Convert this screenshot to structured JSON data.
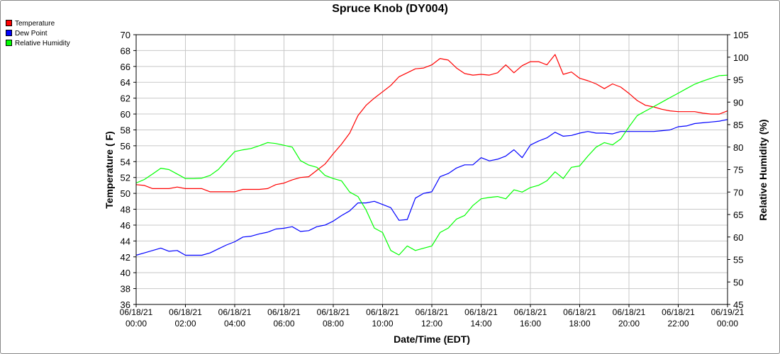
{
  "chart_data": {
    "type": "line",
    "title": "Spruce Knob (DY004)",
    "xlabel": "Date/Time (EDT)",
    "ylabel": "Temperature ( F)",
    "y2label": "Relative Humidity (%)",
    "xlim": [
      "06/18/21 00:00",
      "06/19/21 00:00"
    ],
    "ylim": [
      36,
      70
    ],
    "y2lim": [
      45,
      105
    ],
    "grid": true,
    "legend_position": "top-left",
    "x_ticks": [
      {
        "date": "06/18/21",
        "time": "00:00"
      },
      {
        "date": "06/18/21",
        "time": "02:00"
      },
      {
        "date": "06/18/21",
        "time": "04:00"
      },
      {
        "date": "06/18/21",
        "time": "06:00"
      },
      {
        "date": "06/18/21",
        "time": "08:00"
      },
      {
        "date": "06/18/21",
        "time": "10:00"
      },
      {
        "date": "06/18/21",
        "time": "12:00"
      },
      {
        "date": "06/18/21",
        "time": "14:00"
      },
      {
        "date": "06/18/21",
        "time": "16:00"
      },
      {
        "date": "06/18/21",
        "time": "18:00"
      },
      {
        "date": "06/18/21",
        "time": "20:00"
      },
      {
        "date": "06/18/21",
        "time": "22:00"
      },
      {
        "date": "06/19/21",
        "time": "00:00"
      }
    ],
    "y_ticks": [
      36,
      38,
      40,
      42,
      44,
      46,
      48,
      50,
      52,
      54,
      56,
      58,
      60,
      62,
      64,
      66,
      68,
      70
    ],
    "y2_ticks": [
      45,
      50,
      55,
      60,
      65,
      70,
      75,
      80,
      85,
      90,
      95,
      100,
      105
    ],
    "series": [
      {
        "name": "Temperature",
        "color": "#ff0000",
        "axis": "left",
        "x": [
          "06/18/21 00:00",
          "06/18/21 00:20",
          "06/18/21 00:40",
          "06/18/21 01:00",
          "06/18/21 01:20",
          "06/18/21 01:40",
          "06/18/21 02:00",
          "06/18/21 02:20",
          "06/18/21 02:40",
          "06/18/21 03:00",
          "06/18/21 03:20",
          "06/18/21 03:40",
          "06/18/21 04:00",
          "06/18/21 04:20",
          "06/18/21 04:40",
          "06/18/21 05:00",
          "06/18/21 05:20",
          "06/18/21 05:40",
          "06/18/21 06:00",
          "06/18/21 06:20",
          "06/18/21 06:40",
          "06/18/21 07:00",
          "06/18/21 07:20",
          "06/18/21 07:40",
          "06/18/21 08:00",
          "06/18/21 08:20",
          "06/18/21 08:40",
          "06/18/21 09:00",
          "06/18/21 09:20",
          "06/18/21 09:40",
          "06/18/21 10:00",
          "06/18/21 10:20",
          "06/18/21 10:40",
          "06/18/21 11:00",
          "06/18/21 11:20",
          "06/18/21 11:40",
          "06/18/21 12:00",
          "06/18/21 12:20",
          "06/18/21 12:40",
          "06/18/21 13:00",
          "06/18/21 13:20",
          "06/18/21 13:40",
          "06/18/21 14:00",
          "06/18/21 14:20",
          "06/18/21 14:40",
          "06/18/21 15:00",
          "06/18/21 15:20",
          "06/18/21 15:40",
          "06/18/21 16:00",
          "06/18/21 16:20",
          "06/18/21 16:40",
          "06/18/21 17:00",
          "06/18/21 17:20",
          "06/18/21 17:40",
          "06/18/21 18:00",
          "06/18/21 18:20",
          "06/18/21 18:40",
          "06/18/21 19:00",
          "06/18/21 19:20",
          "06/18/21 19:40",
          "06/18/21 20:00",
          "06/18/21 20:20",
          "06/18/21 20:40",
          "06/18/21 21:00",
          "06/18/21 21:20",
          "06/18/21 21:40",
          "06/18/21 22:00",
          "06/18/21 22:20",
          "06/18/21 22:40",
          "06/18/21 23:00",
          "06/18/21 23:20",
          "06/18/21 23:40",
          "06/19/21 00:00"
        ],
        "values": [
          51.1,
          51.0,
          50.6,
          50.6,
          50.6,
          50.8,
          50.6,
          50.6,
          50.6,
          50.2,
          50.2,
          50.2,
          50.2,
          50.5,
          50.5,
          50.5,
          50.6,
          51.1,
          51.3,
          51.7,
          52.0,
          52.1,
          52.9,
          53.7,
          55.0,
          56.2,
          57.6,
          59.8,
          61.1,
          62.0,
          62.8,
          63.6,
          64.7,
          65.2,
          65.7,
          65.8,
          66.2,
          67.0,
          66.8,
          65.8,
          65.1,
          64.9,
          65.0,
          64.9,
          65.2,
          66.2,
          65.2,
          66.1,
          66.6,
          66.6,
          66.2,
          67.5,
          65.0,
          65.3,
          64.5,
          64.2,
          63.8,
          63.2,
          63.8,
          63.4,
          62.6,
          61.7,
          61.1,
          60.9,
          60.6,
          60.4,
          60.3,
          60.3,
          60.3,
          60.1,
          60.0,
          60.0,
          60.4
        ]
      },
      {
        "name": "Dew Point",
        "color": "#0000ff",
        "axis": "left",
        "x": [
          "06/18/21 00:00",
          "06/18/21 00:20",
          "06/18/21 00:40",
          "06/18/21 01:00",
          "06/18/21 01:20",
          "06/18/21 01:40",
          "06/18/21 02:00",
          "06/18/21 02:20",
          "06/18/21 02:40",
          "06/18/21 03:00",
          "06/18/21 03:20",
          "06/18/21 03:40",
          "06/18/21 04:00",
          "06/18/21 04:20",
          "06/18/21 04:40",
          "06/18/21 05:00",
          "06/18/21 05:20",
          "06/18/21 05:40",
          "06/18/21 06:00",
          "06/18/21 06:20",
          "06/18/21 06:40",
          "06/18/21 07:00",
          "06/18/21 07:20",
          "06/18/21 07:40",
          "06/18/21 08:00",
          "06/18/21 08:20",
          "06/18/21 08:40",
          "06/18/21 09:00",
          "06/18/21 09:20",
          "06/18/21 09:40",
          "06/18/21 10:00",
          "06/18/21 10:20",
          "06/18/21 10:40",
          "06/18/21 11:00",
          "06/18/21 11:20",
          "06/18/21 11:40",
          "06/18/21 12:00",
          "06/18/21 12:20",
          "06/18/21 12:40",
          "06/18/21 13:00",
          "06/18/21 13:20",
          "06/18/21 13:40",
          "06/18/21 14:00",
          "06/18/21 14:20",
          "06/18/21 14:40",
          "06/18/21 15:00",
          "06/18/21 15:20",
          "06/18/21 15:40",
          "06/18/21 16:00",
          "06/18/21 16:20",
          "06/18/21 16:40",
          "06/18/21 17:00",
          "06/18/21 17:20",
          "06/18/21 17:40",
          "06/18/21 18:00",
          "06/18/21 18:20",
          "06/18/21 18:40",
          "06/18/21 19:00",
          "06/18/21 19:20",
          "06/18/21 19:40",
          "06/18/21 20:00",
          "06/18/21 20:20",
          "06/18/21 20:40",
          "06/18/21 21:00",
          "06/18/21 21:20",
          "06/18/21 21:40",
          "06/18/21 22:00",
          "06/18/21 22:20",
          "06/18/21 22:40",
          "06/18/21 23:00",
          "06/18/21 23:20",
          "06/18/21 23:40",
          "06/19/21 00:00"
        ],
        "values": [
          42.2,
          42.5,
          42.8,
          43.1,
          42.7,
          42.8,
          42.2,
          42.2,
          42.2,
          42.5,
          43.0,
          43.5,
          43.9,
          44.5,
          44.6,
          44.9,
          45.1,
          45.5,
          45.6,
          45.8,
          45.2,
          45.3,
          45.8,
          46.0,
          46.5,
          47.2,
          47.8,
          48.8,
          48.8,
          49.0,
          48.6,
          48.2,
          46.6,
          46.7,
          49.4,
          50.0,
          50.2,
          52.1,
          52.5,
          53.2,
          53.6,
          53.6,
          54.5,
          54.1,
          54.3,
          54.7,
          55.5,
          54.5,
          56.1,
          56.6,
          57.0,
          57.7,
          57.2,
          57.3,
          57.6,
          57.8,
          57.6,
          57.6,
          57.5,
          57.8,
          57.8,
          57.8,
          57.8,
          57.8,
          57.9,
          58.0,
          58.4,
          58.5,
          58.8,
          58.9,
          59.0,
          59.1,
          59.3
        ]
      },
      {
        "name": "Relative Humidity",
        "color": "#00ff00",
        "axis": "right",
        "x": [
          "06/18/21 00:00",
          "06/18/21 00:20",
          "06/18/21 00:40",
          "06/18/21 01:00",
          "06/18/21 01:20",
          "06/18/21 01:40",
          "06/18/21 02:00",
          "06/18/21 02:20",
          "06/18/21 02:40",
          "06/18/21 03:00",
          "06/18/21 03:20",
          "06/18/21 03:40",
          "06/18/21 04:00",
          "06/18/21 04:20",
          "06/18/21 04:40",
          "06/18/21 05:00",
          "06/18/21 05:20",
          "06/18/21 05:40",
          "06/18/21 06:00",
          "06/18/21 06:20",
          "06/18/21 06:40",
          "06/18/21 07:00",
          "06/18/21 07:20",
          "06/18/21 07:40",
          "06/18/21 08:00",
          "06/18/21 08:20",
          "06/18/21 08:40",
          "06/18/21 09:00",
          "06/18/21 09:20",
          "06/18/21 09:40",
          "06/18/21 10:00",
          "06/18/21 10:20",
          "06/18/21 10:40",
          "06/18/21 11:00",
          "06/18/21 11:20",
          "06/18/21 11:40",
          "06/18/21 12:00",
          "06/18/21 12:20",
          "06/18/21 12:40",
          "06/18/21 13:00",
          "06/18/21 13:20",
          "06/18/21 13:40",
          "06/18/21 14:00",
          "06/18/21 14:20",
          "06/18/21 14:40",
          "06/18/21 15:00",
          "06/18/21 15:20",
          "06/18/21 15:40",
          "06/18/21 16:00",
          "06/18/21 16:20",
          "06/18/21 16:40",
          "06/18/21 17:00",
          "06/18/21 17:20",
          "06/18/21 17:40",
          "06/18/21 18:00",
          "06/18/21 18:20",
          "06/18/21 18:40",
          "06/18/21 19:00",
          "06/18/21 19:20",
          "06/18/21 19:40",
          "06/18/21 20:00",
          "06/18/21 20:20",
          "06/18/21 20:40",
          "06/18/21 21:00",
          "06/18/21 21:20",
          "06/18/21 21:40",
          "06/18/21 22:00",
          "06/18/21 22:20",
          "06/18/21 22:40",
          "06/18/21 23:00",
          "06/18/21 23:20",
          "06/18/21 23:40",
          "06/19/21 00:00"
        ],
        "values": [
          72.0,
          72.8,
          74.0,
          75.3,
          75.0,
          74.0,
          73.0,
          73.0,
          73.1,
          73.7,
          75.0,
          77.0,
          79.0,
          79.4,
          79.7,
          80.3,
          81.0,
          80.8,
          80.4,
          80.0,
          77.0,
          76.0,
          75.5,
          73.7,
          73.0,
          72.5,
          70.0,
          69.0,
          66.0,
          62.0,
          61.0,
          57.0,
          56.0,
          58.0,
          57.0,
          57.5,
          58.0,
          61.0,
          62.0,
          64.0,
          64.8,
          67.0,
          68.5,
          68.8,
          69.0,
          68.5,
          70.5,
          70.0,
          71.0,
          71.5,
          72.5,
          74.5,
          73.0,
          75.5,
          75.8,
          78.0,
          80.0,
          81.0,
          80.5,
          81.8,
          84.5,
          87.0,
          88.0,
          89.0,
          90.0,
          91.0,
          92.0,
          93.0,
          94.0,
          94.7,
          95.3,
          95.9,
          96.0
        ]
      }
    ]
  }
}
